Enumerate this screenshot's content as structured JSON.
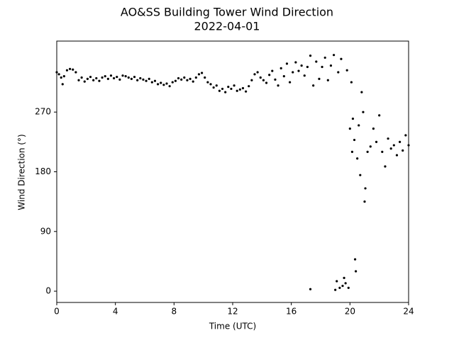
{
  "chart_data": {
    "type": "scatter",
    "title": "AO&SS Building Tower Wind Direction",
    "subtitle": "2022-04-01",
    "x_label": "Time (UTC)",
    "y_label": "Wind Direction (°)",
    "color": "#000000",
    "xlim": [
      0,
      24
    ],
    "xticks": [
      0,
      4,
      8,
      12,
      16,
      20,
      24
    ],
    "ylim": [
      -17,
      377
    ],
    "yticks": [
      0,
      90,
      180,
      270
    ],
    "x": [
      0.0,
      0.15,
      0.3,
      0.4,
      0.5,
      0.7,
      0.9,
      1.1,
      1.3,
      1.5,
      1.7,
      1.9,
      2.1,
      2.3,
      2.5,
      2.7,
      2.9,
      3.1,
      3.3,
      3.5,
      3.7,
      3.9,
      4.1,
      4.3,
      4.5,
      4.7,
      4.9,
      5.1,
      5.3,
      5.5,
      5.7,
      5.9,
      6.1,
      6.3,
      6.5,
      6.7,
      6.9,
      7.1,
      7.3,
      7.5,
      7.7,
      7.9,
      8.1,
      8.3,
      8.5,
      8.7,
      8.9,
      9.1,
      9.3,
      9.5,
      9.7,
      9.9,
      10.1,
      10.3,
      10.5,
      10.7,
      10.9,
      11.1,
      11.3,
      11.5,
      11.7,
      11.9,
      12.1,
      12.3,
      12.5,
      12.7,
      12.9,
      13.1,
      13.3,
      13.5,
      13.7,
      13.9,
      14.1,
      14.3,
      14.5,
      14.7,
      14.9,
      15.1,
      15.3,
      15.5,
      15.7,
      15.9,
      16.1,
      16.3,
      16.5,
      16.7,
      16.9,
      17.1,
      17.3,
      17.3,
      17.5,
      17.7,
      17.9,
      18.1,
      18.3,
      18.5,
      18.7,
      18.9,
      19.0,
      19.1,
      19.2,
      19.3,
      19.4,
      19.5,
      19.6,
      19.7,
      19.8,
      19.9,
      20.0,
      20.1,
      20.15,
      20.2,
      20.3,
      20.35,
      20.4,
      20.5,
      20.6,
      20.7,
      20.8,
      20.9,
      21.0,
      21.05,
      21.2,
      21.4,
      21.6,
      21.8,
      22.0,
      22.2,
      22.4,
      22.6,
      22.8,
      23.0,
      23.2,
      23.4,
      23.6,
      23.8,
      24.0
    ],
    "values": [
      330,
      327,
      322,
      312,
      324,
      333,
      335,
      334,
      330,
      318,
      322,
      316,
      320,
      323,
      318,
      321,
      317,
      322,
      324,
      320,
      325,
      321,
      323,
      319,
      325,
      324,
      322,
      320,
      323,
      318,
      321,
      319,
      317,
      320,
      315,
      317,
      312,
      314,
      311,
      313,
      309,
      315,
      317,
      321,
      319,
      322,
      318,
      320,
      316,
      322,
      327,
      329,
      322,
      315,
      312,
      307,
      310,
      302,
      305,
      300,
      308,
      305,
      310,
      302,
      304,
      306,
      301,
      309,
      318,
      327,
      330,
      322,
      318,
      314,
      326,
      332,
      319,
      310,
      336,
      324,
      343,
      315,
      330,
      345,
      332,
      340,
      325,
      338,
      355,
      3,
      310,
      346,
      320,
      338,
      352,
      318,
      340,
      356,
      2,
      15,
      330,
      5,
      350,
      8,
      20,
      12,
      333,
      5,
      245,
      315,
      210,
      260,
      228,
      48,
      30,
      200,
      250,
      175,
      300,
      270,
      135,
      155,
      210,
      218,
      245,
      225,
      265,
      210,
      188,
      230,
      215,
      220,
      205,
      225,
      212,
      235,
      220
    ]
  }
}
